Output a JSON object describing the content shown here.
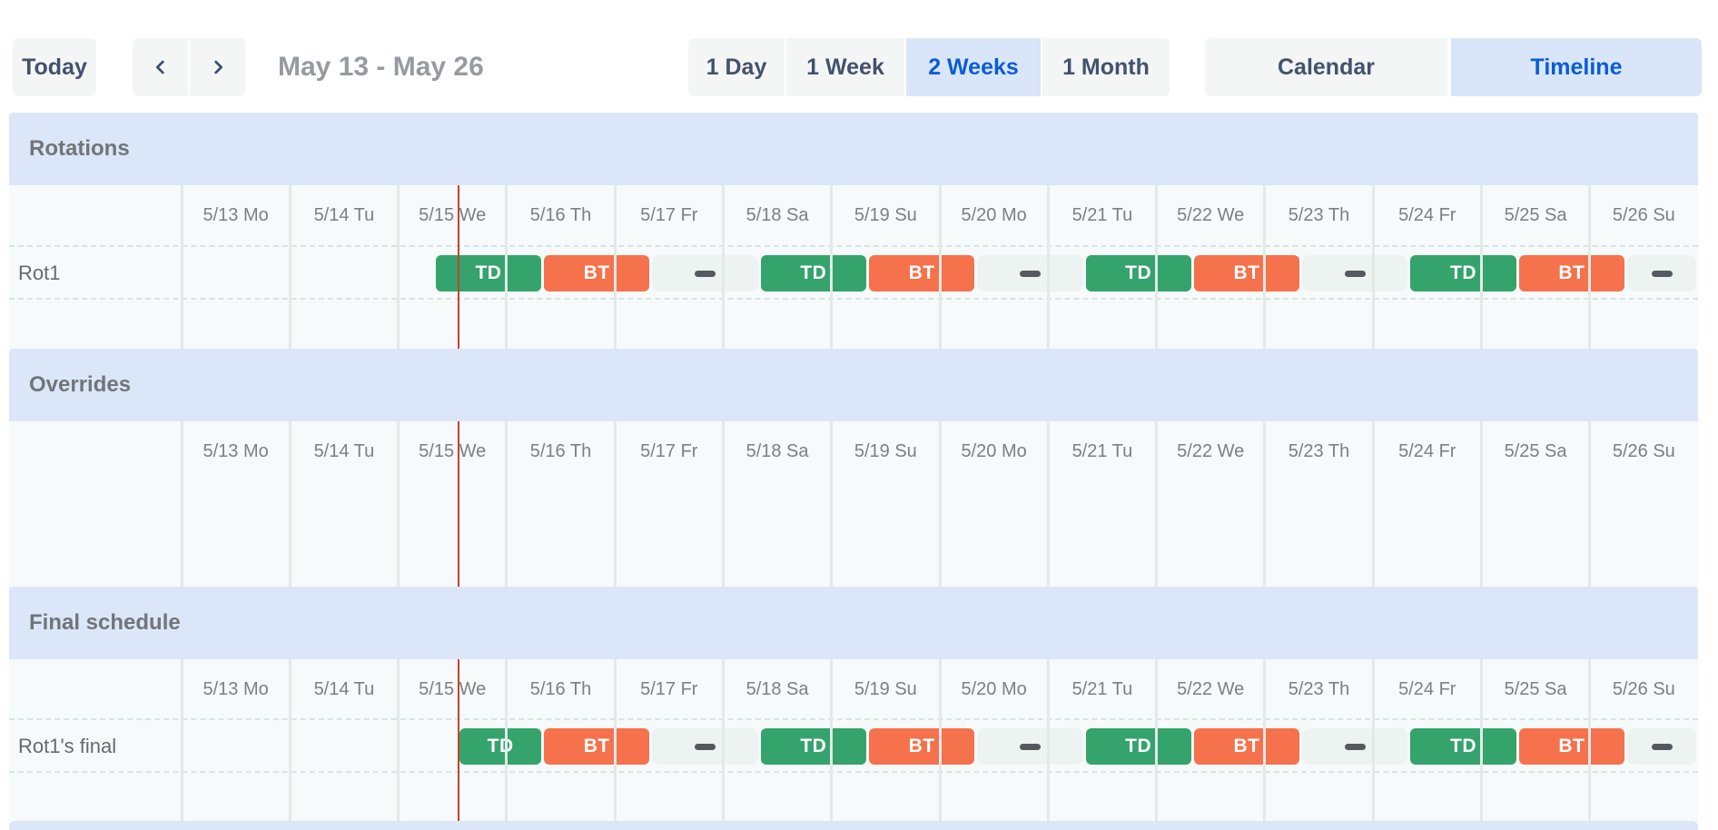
{
  "toolbar": {
    "today_label": "Today",
    "prev_icon": "chevron-left",
    "next_icon": "chevron-right",
    "range_title": "May 13 - May 26",
    "view_buttons": [
      {
        "label": "1 Day",
        "selected": false
      },
      {
        "label": "1 Week",
        "selected": false
      },
      {
        "label": "2 Weeks",
        "selected": true
      },
      {
        "label": "1 Month",
        "selected": false
      }
    ],
    "mode_buttons": [
      {
        "label": "Calendar",
        "selected": false
      },
      {
        "label": "Timeline",
        "selected": true
      }
    ]
  },
  "timeline": {
    "days": [
      "5/13 Mo",
      "5/14 Tu",
      "5/15 We",
      "5/16 Th",
      "5/17 Fr",
      "5/18 Sa",
      "5/19 Su",
      "5/20 Mo",
      "5/21 Tu",
      "5/22 We",
      "5/23 Th",
      "5/24 Fr",
      "5/25 Sa",
      "5/26 Su"
    ],
    "now_day_offset": 2.555
  },
  "colors": {
    "td": "#34a36c",
    "bt": "#f5724c",
    "gap_bg": "#edf3f0",
    "gap_dash": "#55595d",
    "now_line": "#c5432e",
    "band_bg": "#dbe7f9",
    "accent_blue": "#0b5cd7",
    "accent_blue_bg": "#d9e6fa"
  },
  "sections": [
    {
      "title": "Rotations",
      "rows": [
        {
          "label": "Rot1",
          "segments": [
            {
              "label": "TD",
              "kind": "td",
              "start": 2.3333,
              "end": 3.3333
            },
            {
              "label": "BT",
              "kind": "bt",
              "start": 3.3333,
              "end": 4.3333
            },
            {
              "label": "",
              "kind": "gap",
              "start": 4.3333,
              "end": 5.3333
            },
            {
              "label": "TD",
              "kind": "td",
              "start": 5.3333,
              "end": 6.3333
            },
            {
              "label": "BT",
              "kind": "bt",
              "start": 6.3333,
              "end": 7.3333
            },
            {
              "label": "",
              "kind": "gap",
              "start": 7.3333,
              "end": 8.3333
            },
            {
              "label": "TD",
              "kind": "td",
              "start": 8.3333,
              "end": 9.3333
            },
            {
              "label": "BT",
              "kind": "bt",
              "start": 9.3333,
              "end": 10.3333
            },
            {
              "label": "",
              "kind": "gap",
              "start": 10.3333,
              "end": 11.3333
            },
            {
              "label": "TD",
              "kind": "td",
              "start": 11.3333,
              "end": 12.3333
            },
            {
              "label": "BT",
              "kind": "bt",
              "start": 12.3333,
              "end": 13.3333
            },
            {
              "label": "",
              "kind": "gap",
              "start": 13.3333,
              "end": 14
            }
          ]
        }
      ]
    },
    {
      "title": "Overrides",
      "rows": []
    },
    {
      "title": "Final schedule",
      "rows": [
        {
          "label": "Rot1's final",
          "segments": [
            {
              "label": "TD",
              "kind": "td",
              "start": 2.555,
              "end": 3.3333
            },
            {
              "label": "BT",
              "kind": "bt",
              "start": 3.3333,
              "end": 4.3333
            },
            {
              "label": "",
              "kind": "gap",
              "start": 4.3333,
              "end": 5.3333
            },
            {
              "label": "TD",
              "kind": "td",
              "start": 5.3333,
              "end": 6.3333
            },
            {
              "label": "BT",
              "kind": "bt",
              "start": 6.3333,
              "end": 7.3333
            },
            {
              "label": "",
              "kind": "gap",
              "start": 7.3333,
              "end": 8.3333
            },
            {
              "label": "TD",
              "kind": "td",
              "start": 8.3333,
              "end": 9.3333
            },
            {
              "label": "BT",
              "kind": "bt",
              "start": 9.3333,
              "end": 10.3333
            },
            {
              "label": "",
              "kind": "gap",
              "start": 10.3333,
              "end": 11.3333
            },
            {
              "label": "TD",
              "kind": "td",
              "start": 11.3333,
              "end": 12.3333
            },
            {
              "label": "BT",
              "kind": "bt",
              "start": 12.3333,
              "end": 13.3333
            },
            {
              "label": "",
              "kind": "gap",
              "start": 13.3333,
              "end": 14
            }
          ]
        }
      ]
    }
  ]
}
